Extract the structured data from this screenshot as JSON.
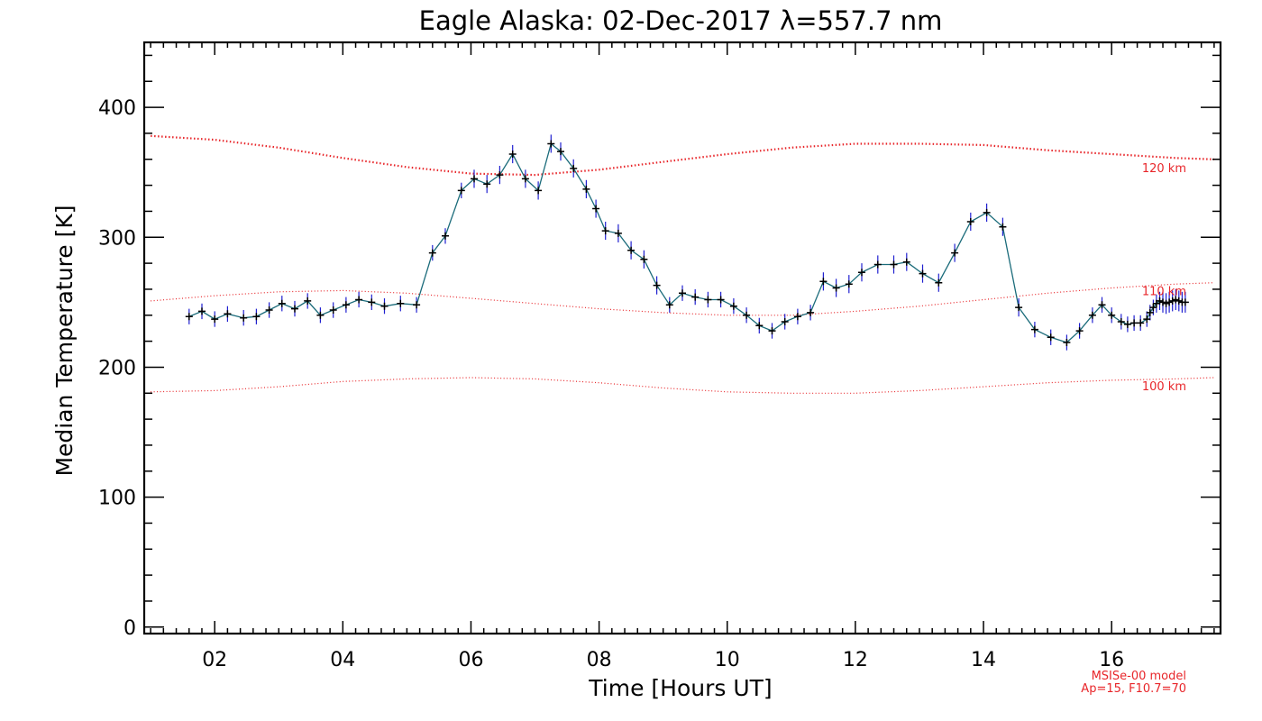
{
  "chart_data": {
    "type": "line",
    "title": "Eagle Alaska: 02-Dec-2017 λ=557.7 nm",
    "xlabel": "Time [Hours UT]",
    "ylabel": "Median Temperature [K]",
    "xlim": [
      0.9,
      17.7
    ],
    "ylim": [
      -5,
      450
    ],
    "xticks": [
      2,
      4,
      6,
      8,
      10,
      12,
      14,
      16
    ],
    "xtick_labels": [
      "02",
      "04",
      "06",
      "08",
      "10",
      "12",
      "14",
      "16"
    ],
    "yticks": [
      0,
      100,
      200,
      300,
      400
    ],
    "ytick_labels": [
      "0",
      "100",
      "200",
      "300",
      "400"
    ],
    "grid": false,
    "colors": {
      "data_line": "#1a6b7a",
      "markers": "#000000",
      "error_bars": "#2020d0",
      "model": "#e8262a"
    },
    "series": [
      {
        "x": [
          1.6,
          1.8,
          2.0,
          2.2,
          2.45,
          2.65,
          2.85,
          3.05,
          3.25,
          3.45,
          3.65,
          3.85,
          4.05,
          4.25,
          4.45,
          4.65,
          4.9,
          5.15,
          5.4,
          5.6,
          5.85,
          6.05,
          6.25,
          6.45,
          6.65,
          6.85,
          7.05,
          7.25,
          7.4,
          7.6,
          7.8,
          7.95,
          8.1,
          8.3,
          8.5,
          8.7,
          8.9,
          9.1,
          9.3,
          9.5,
          9.7,
          9.9,
          10.1,
          10.3,
          10.5,
          10.7,
          10.9,
          11.1,
          11.3,
          11.5,
          11.7,
          11.9,
          12.1,
          12.35,
          12.6,
          12.8,
          13.05,
          13.3,
          13.55,
          13.8,
          14.05,
          14.3,
          14.55,
          14.8,
          15.05,
          15.3,
          15.5,
          15.7,
          15.85,
          16.0,
          16.15,
          16.25,
          16.35,
          16.45,
          16.55,
          16.6,
          16.65,
          16.7,
          16.75,
          16.8,
          16.85,
          16.9,
          16.95,
          17.0,
          17.05,
          17.1,
          17.15
        ],
        "y": [
          239,
          243,
          237,
          241,
          238,
          239,
          244,
          249,
          245,
          251,
          240,
          244,
          248,
          252,
          250,
          247,
          249,
          248,
          288,
          301,
          336,
          345,
          341,
          348,
          364,
          345,
          336,
          372,
          366,
          353,
          337,
          322,
          305,
          303,
          290,
          283,
          263,
          248,
          257,
          254,
          252,
          252,
          247,
          240,
          232,
          228,
          235,
          239,
          242,
          266,
          261,
          264,
          273,
          279,
          279,
          281,
          272,
          265,
          288,
          312,
          319,
          308,
          246,
          229,
          223,
          219,
          228,
          240,
          248,
          240,
          235,
          233,
          234,
          234,
          237,
          242,
          246,
          249,
          251,
          250,
          249,
          250,
          251,
          252,
          251,
          250,
          250
        ],
        "error": [
          6,
          6,
          6,
          6,
          6,
          6,
          6,
          6,
          6,
          6,
          6,
          6,
          6,
          6,
          6,
          6,
          6,
          6,
          6,
          6,
          6,
          7,
          7,
          7,
          7,
          7,
          7,
          7,
          7,
          7,
          7,
          7,
          7,
          7,
          7,
          7,
          7,
          6,
          6,
          6,
          6,
          6,
          6,
          6,
          6,
          6,
          6,
          6,
          6,
          7,
          7,
          7,
          7,
          7,
          7,
          7,
          7,
          7,
          7,
          7,
          7,
          7,
          7,
          6,
          6,
          6,
          6,
          6,
          6,
          6,
          6,
          6,
          6,
          6,
          6,
          6,
          6,
          7,
          7,
          8,
          8,
          8,
          8,
          8,
          8,
          8,
          8
        ]
      }
    ],
    "model_curves": [
      {
        "label": "120 km",
        "x": [
          1.0,
          2.0,
          3.0,
          4.0,
          5.0,
          6.0,
          7.0,
          8.0,
          9.0,
          10.0,
          11.0,
          12.0,
          13.0,
          14.0,
          15.0,
          16.0,
          17.0,
          17.6
        ],
        "y": [
          378,
          375,
          369,
          361,
          354,
          349,
          348,
          352,
          358,
          364,
          369,
          372,
          372,
          371,
          367,
          364,
          361,
          360
        ]
      },
      {
        "label": "110 km",
        "x": [
          1.0,
          2.0,
          3.0,
          4.0,
          5.0,
          6.0,
          7.0,
          8.0,
          9.0,
          10.0,
          11.0,
          12.0,
          13.0,
          14.0,
          15.0,
          16.0,
          17.0,
          17.6
        ],
        "y": [
          251,
          255,
          258,
          259,
          257,
          253,
          249,
          245,
          242,
          240,
          240,
          243,
          247,
          252,
          257,
          261,
          264,
          265
        ]
      },
      {
        "label": "100 km",
        "x": [
          1.0,
          2.0,
          3.0,
          4.0,
          5.0,
          6.0,
          7.0,
          8.0,
          9.0,
          10.0,
          11.0,
          12.0,
          13.0,
          14.0,
          15.0,
          16.0,
          17.0,
          17.6
        ],
        "y": [
          181,
          182,
          185,
          189,
          191,
          192,
          191,
          188,
          184,
          181,
          180,
          180,
          182,
          185,
          188,
          190,
          191,
          192
        ]
      }
    ],
    "model_note_line1": "MSISe-00 model",
    "model_note_line2": "Ap=15, F10.7=70"
  }
}
